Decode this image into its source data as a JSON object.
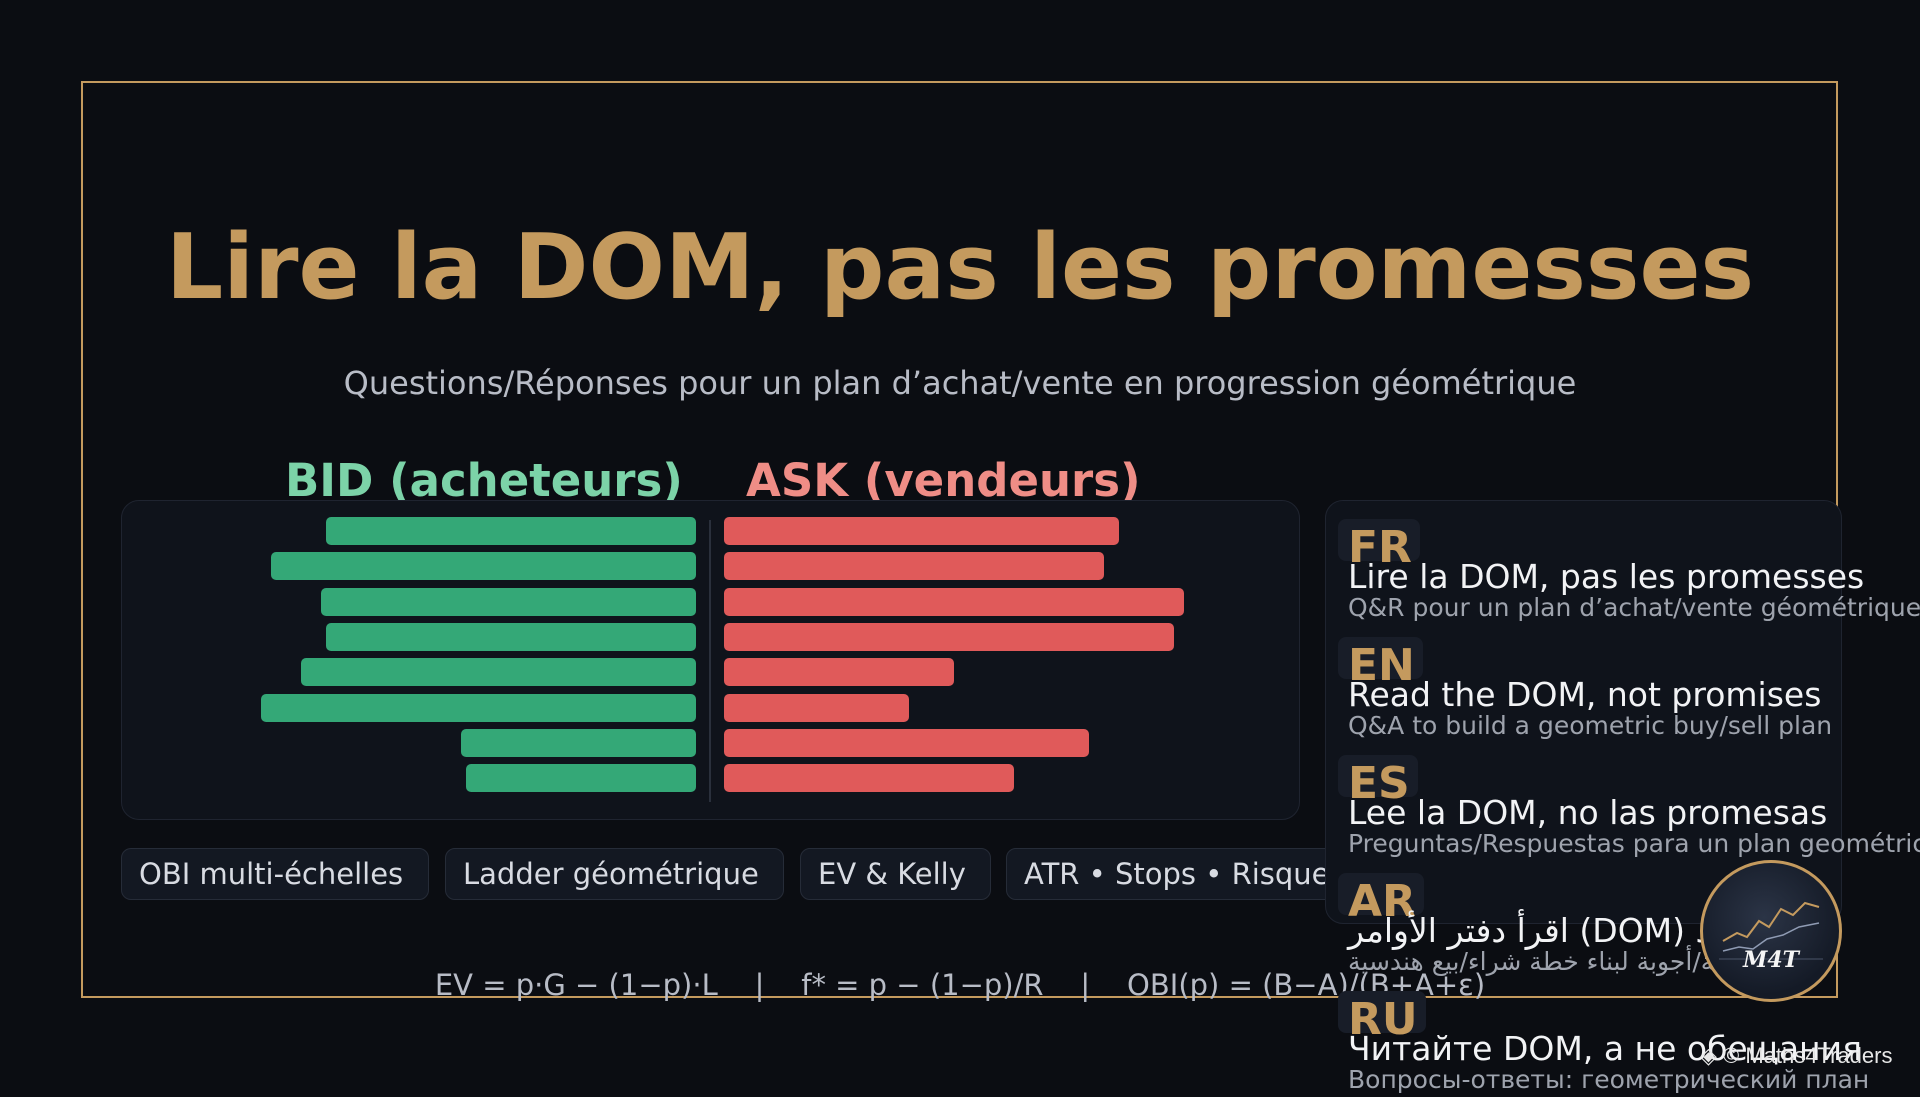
{
  "header": {
    "title": "Lire la DOM, pas les promesses",
    "subtitle": "Questions/Réponses pour un plan d’achat/vente en progression géométrique"
  },
  "dom": {
    "bid_label": "BID (acheteurs)",
    "ask_label": "ASK (vendeurs)",
    "bid_sizes": [
      0.74,
      0.85,
      0.75,
      0.74,
      0.79,
      0.87,
      0.47,
      0.46
    ],
    "ask_sizes": [
      0.79,
      0.76,
      0.92,
      0.9,
      0.46,
      0.37,
      0.73,
      0.58
    ],
    "bid_color": "#34a877",
    "ask_color": "#e05a5a"
  },
  "chips": [
    "OBI multi-échelles",
    "Ladder géométrique",
    "EV & Kelly",
    "ATR • Stops • Risque"
  ],
  "formula": "EV = p·G − (1−p)·L    |    f* = p − (1−p)/R    |    OBI(p) = (B−A)/(B+A+ε)",
  "languages": [
    {
      "code": "FR",
      "title": "Lire la DOM, pas les promesses",
      "subtitle": "Q&R pour un plan d’achat/vente géométrique"
    },
    {
      "code": "EN",
      "title": "Read the DOM, not promises",
      "subtitle": "Q&A to build a geometric buy/sell plan"
    },
    {
      "code": "ES",
      "title": "Lee la DOM, no las promesas",
      "subtitle": "Preguntas/Respuestas para un plan geométrico"
    },
    {
      "code": "AR",
      "title": "اقرأ دفتر الأوامر (DOM) لا الوعود",
      "subtitle": "أسئلة/أجوبة لبناء خطة شراء/بيع هندسية"
    },
    {
      "code": "RU",
      "title": "Читайте DOM, а не обещания",
      "subtitle": "Вопросы-ответы: геометрический план"
    }
  ],
  "logo": {
    "text": "M4T"
  },
  "credit": "◈ © Maths4Traders",
  "colors": {
    "accent": "#c49a5e",
    "background": "#0b0d12"
  }
}
